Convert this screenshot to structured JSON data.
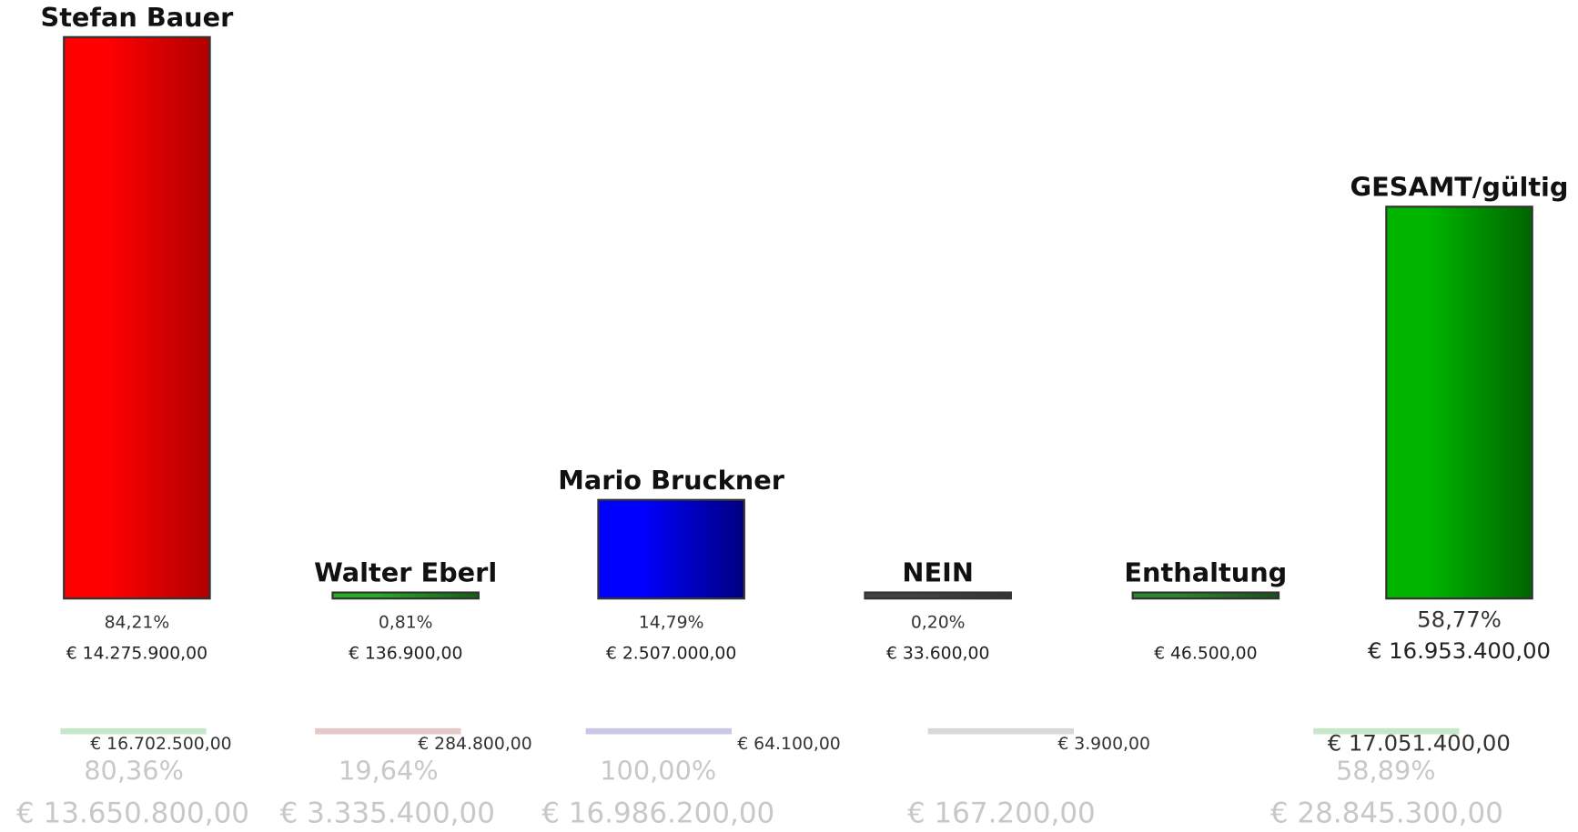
{
  "chart_data": {
    "type": "bar",
    "categories": [
      "Stefan Bauer",
      "Walter Eberl",
      "Mario Bruckner",
      "NEIN",
      "Enthaltung",
      "GESAMT/gültig"
    ],
    "values": [
      84.21,
      0.81,
      14.79,
      0.2,
      null,
      58.77
    ],
    "value_labels": [
      "84,21%",
      "0,81%",
      "14,79%",
      "0,20%",
      null,
      "58,77%"
    ],
    "colors": [
      [
        "#ff0000",
        "#b00000"
      ],
      [
        "#22b022",
        "#145f14"
      ],
      [
        "#0000ff",
        "#000080"
      ],
      [
        "#444444",
        "#333333"
      ],
      [
        "#2a8a2a",
        "#1a4f1a"
      ],
      [
        "#00b400",
        "#006400"
      ]
    ],
    "amounts": [
      "€ 14.275.900,00",
      "€ 136.900,00",
      "€ 2.507.000,00",
      "€ 33.600,00",
      "€ 46.500,00",
      "€ 16.953.400,00"
    ],
    "prev_colors": [
      "#c8e6c8",
      "#e6c8c8",
      "#c8c8e6",
      "#d8d8d8",
      null,
      "#c8e6c8"
    ],
    "prev_amounts": [
      "€ 16.702.500,00",
      "€ 284.800,00",
      "€ 64.100,00",
      "€ 3.900,00",
      null,
      "€ 17.051.400,00"
    ],
    "prev_percents": [
      "80,36%",
      "19,64%",
      "100,00%",
      null,
      null,
      "58,89%"
    ],
    "prev_totals": [
      "€ 13.650.800,00",
      "€ 3.335.400,00",
      "€ 16.986.200,00",
      "€ 167.200,00",
      null,
      "€ 28.845.300,00"
    ]
  }
}
